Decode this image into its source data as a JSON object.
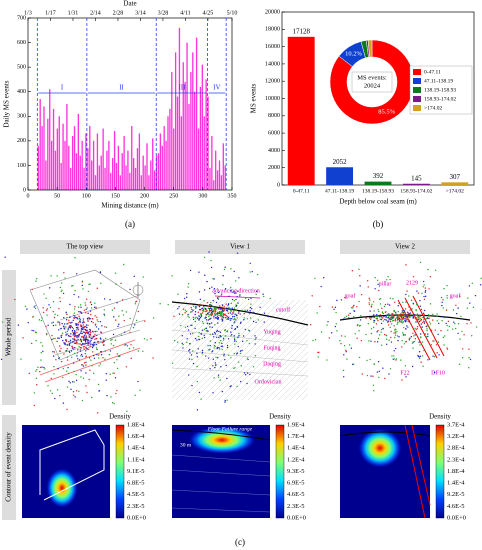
{
  "chart_data": [
    {
      "type": "bar",
      "caption": "(a)",
      "x2label": "Date",
      "xlabel": "Mining distance (m)",
      "ylabel": "Daily MS events",
      "color": "#ff33dd",
      "xlim": [
        0,
        350
      ],
      "xticks": [
        0,
        50,
        100,
        150,
        200,
        250,
        300,
        350
      ],
      "x2lim": [
        0,
        127
      ],
      "x2ticks": [
        {
          "value": 0,
          "label": "1/3"
        },
        {
          "value": 14,
          "label": "1/17"
        },
        {
          "value": 28,
          "label": "1/31"
        },
        {
          "value": 42,
          "label": "2/14"
        },
        {
          "value": 56,
          "label": "2/28"
        },
        {
          "value": 70,
          "label": "3/14"
        },
        {
          "value": 84,
          "label": "3/28"
        },
        {
          "value": 98,
          "label": "4/11"
        },
        {
          "value": 112,
          "label": "4/25"
        },
        {
          "value": 127,
          "label": "5/10"
        }
      ],
      "ylim": [
        0,
        700
      ],
      "yticks": [
        0,
        100,
        200,
        300,
        400,
        500,
        600,
        700
      ],
      "bar_span": [
        16,
        340
      ],
      "values": [
        180,
        370,
        260,
        340,
        120,
        290,
        410,
        200,
        330,
        160,
        250,
        300,
        110,
        270,
        200,
        350,
        180,
        90,
        220,
        260,
        150,
        310,
        140,
        200,
        90,
        230,
        170,
        260,
        120,
        200,
        60,
        230,
        100,
        140,
        250,
        90,
        160,
        200,
        70,
        130,
        240,
        110,
        180,
        60,
        150,
        220,
        100,
        160,
        70,
        260,
        130,
        90,
        170,
        230,
        60,
        140,
        100,
        190,
        60,
        120,
        210,
        80,
        140,
        150,
        230,
        180,
        260,
        200,
        300,
        330,
        480,
        250,
        560,
        380,
        660,
        300,
        520,
        440,
        600,
        350,
        480,
        560,
        400,
        620,
        250,
        420,
        510,
        300,
        450,
        380,
        90,
        220,
        40,
        160,
        80,
        120,
        60,
        190,
        100
      ],
      "phases": [
        {
          "label": "I",
          "from": 16,
          "to": 101
        },
        {
          "label": "II",
          "from": 101,
          "to": 220
        },
        {
          "label": "III",
          "from": 220,
          "to": 308
        },
        {
          "label": "IV",
          "from": 308,
          "to": 340
        }
      ]
    },
    {
      "type": "bar",
      "caption": "(b)",
      "xlabel": "Depth below coal seam (m)",
      "ylabel": "MS events",
      "categories": [
        "0-47.11",
        "47.11-138.19",
        "138.19-158.93",
        "158.93-174.02",
        ">174.02"
      ],
      "values": [
        17128,
        2052,
        392,
        145,
        307
      ],
      "colors": [
        "#ff0000",
        "#1040d0",
        "#0a7a1a",
        "#7a1a8a",
        "#d4a020"
      ],
      "ylim": [
        0,
        20000
      ],
      "yticks": [
        0,
        2000,
        4000,
        6000,
        8000,
        10000,
        12000,
        14000,
        16000,
        18000,
        20000
      ],
      "inset": {
        "type": "pie",
        "center_text": [
          "MS events:",
          "20024"
        ],
        "labels": [
          "0-47.11",
          "47.11-138.19",
          "138.19-158.93",
          "158.93-174.02",
          ">174.02"
        ],
        "values": [
          85.5,
          10.2,
          2.0,
          0.7,
          1.5
        ],
        "value_labels": [
          "85.5%",
          "10.2%",
          null,
          null,
          null
        ],
        "colors": [
          "#ff0000",
          "#1040d0",
          "#0a7a1a",
          "#7a1a8a",
          "#d4a020"
        ]
      }
    }
  ],
  "panel_c": {
    "caption": "(c)",
    "columns": [
      "The top view",
      "View 1",
      "View 2"
    ],
    "rows": [
      "Whole period",
      "Contour of event density"
    ],
    "view1_labels": [
      "advancing direction",
      "cutoff",
      "Yuqing",
      "Fuqing",
      "Daqing",
      "Ordovician"
    ],
    "view2_labels": [
      "goaf",
      "pillar",
      "2129",
      "goaf",
      "F22",
      "DF10"
    ],
    "density_labels": [
      "Floor Failure range",
      "30 m"
    ],
    "colorbars": [
      {
        "title": "Density",
        "labels": [
          "1.8E-4",
          "1.6E-4",
          "1.4E-4",
          "1.1E-4",
          "9.1E-5",
          "6.8E-5",
          "4.5E-5",
          "2.3E-5",
          "0.0E+0"
        ]
      },
      {
        "title": "Density",
        "labels": [
          "1.9E-4",
          "1.7E-4",
          "1.4E-4",
          "1.2E-4",
          "9.3E-5",
          "6.9E-5",
          "4.6E-5",
          "2.3E-5",
          "0.0E+0"
        ]
      },
      {
        "title": "Density",
        "labels": [
          "3.7E-4",
          "3.2E-4",
          "2.8E-4",
          "2.3E-4",
          "1.8E-4",
          "1.4E-4",
          "9.2E-5",
          "4.6E-5",
          "0.0E+0"
        ]
      }
    ]
  }
}
